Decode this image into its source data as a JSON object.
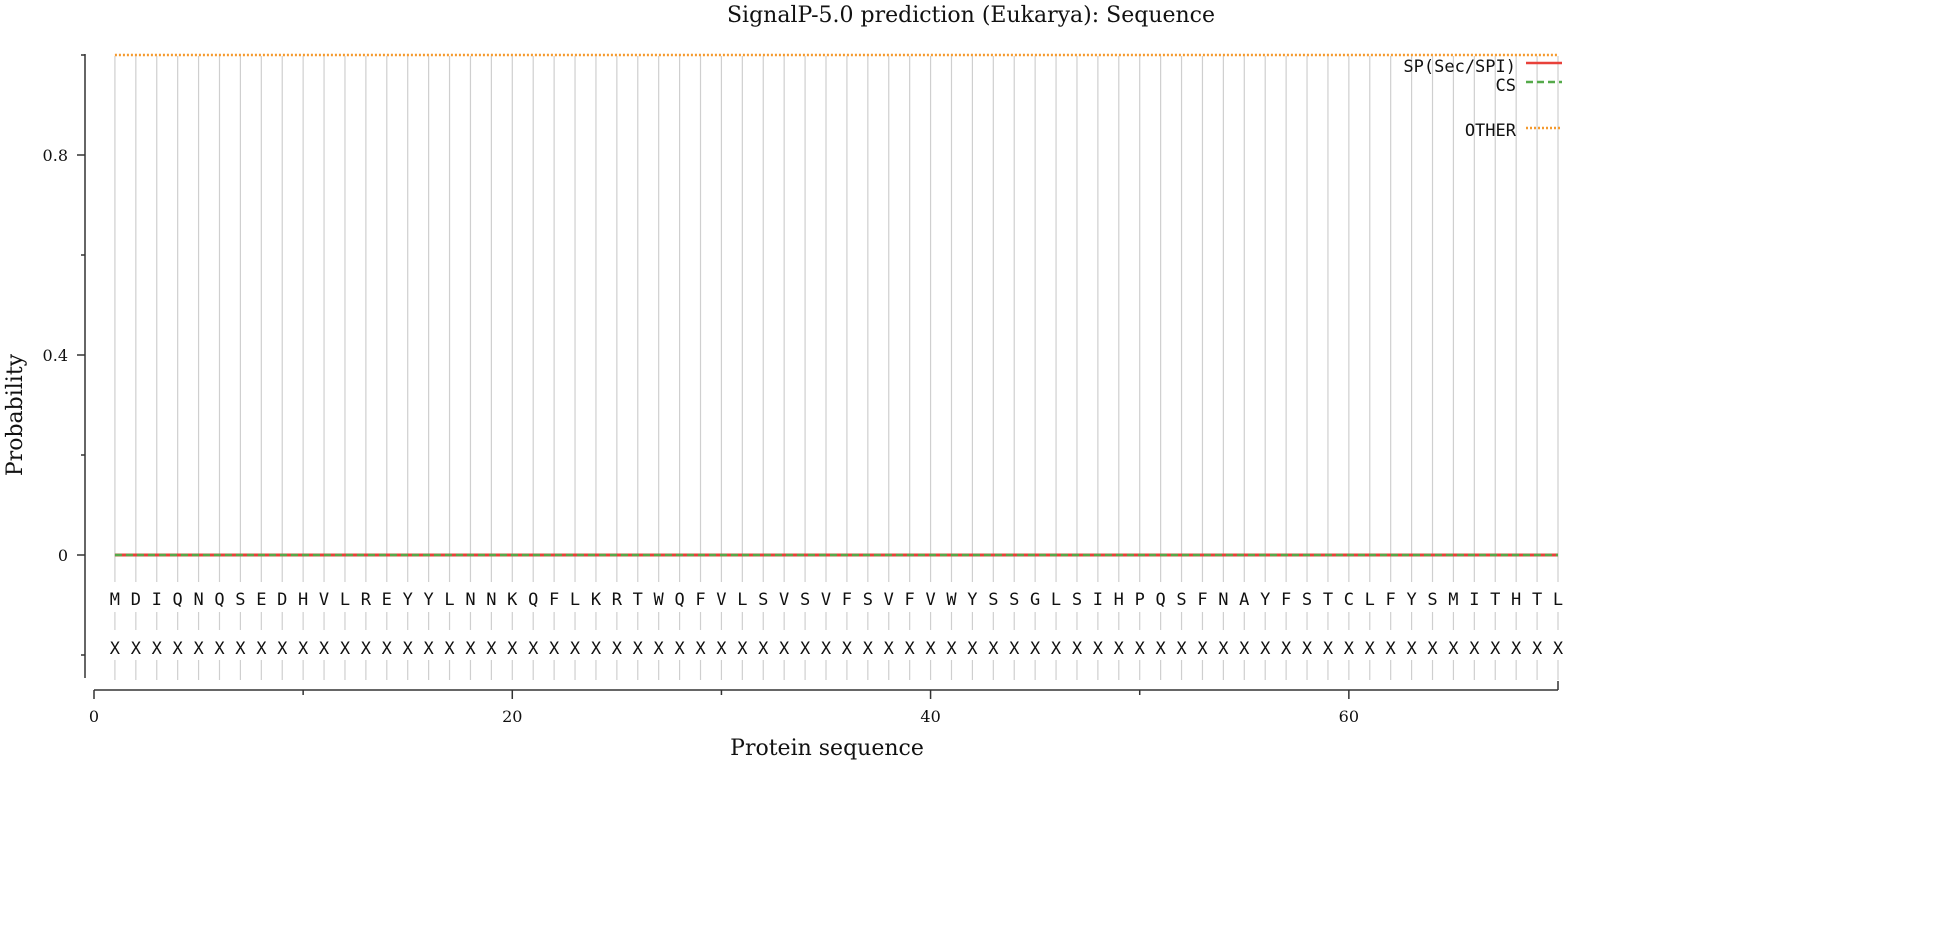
{
  "chart_data": {
    "type": "line",
    "title": "SignalP-5.0 prediction (Eukarya):  Sequence",
    "xlabel": "Protein sequence",
    "ylabel": "Probability",
    "xlim": [
      0,
      70
    ],
    "ylim": [
      -0.245,
      1.0
    ],
    "x_ticks": [
      0,
      20,
      40,
      60
    ],
    "x_minor_ticks": [
      10,
      30,
      50
    ],
    "y_ticks": [
      0,
      0.4,
      0.8
    ],
    "y_ticks_label_text": [
      "0",
      "0.4",
      "0.8"
    ],
    "y_minor_ticks": [
      0.2,
      0.6,
      1.0,
      -0.2
    ],
    "sequence": "MDIQNQSEDHVLREYYLNNKQFLKRTWQFVLSVSVFSVFVWYSSGLSIHPQSFNAYFSTCLFYSMITHTL",
    "annotation": "XXXXXXXXXXXXXXXXXXXXXXXXXXXXXXXXXXXXXXXXXXXXXXXXXXXXXXXXXXXXXXXXXXXXXX",
    "positions": {
      "start": 1,
      "end": 70
    },
    "series": [
      {
        "name": "SP(Sec/SPI)",
        "color": "#e8413a",
        "style": "solid",
        "constant": 0
      },
      {
        "name": "CS",
        "color": "#55aa4a",
        "style": "dashed",
        "constant": 0
      },
      {
        "name": "OTHER",
        "color": "#f59a2e",
        "style": "dotted",
        "constant": 1
      }
    ],
    "legend_position": "top-right",
    "grid": "vertical lines at each residue",
    "grid_color": "#cfcfcf",
    "axis_color": "#333333"
  }
}
